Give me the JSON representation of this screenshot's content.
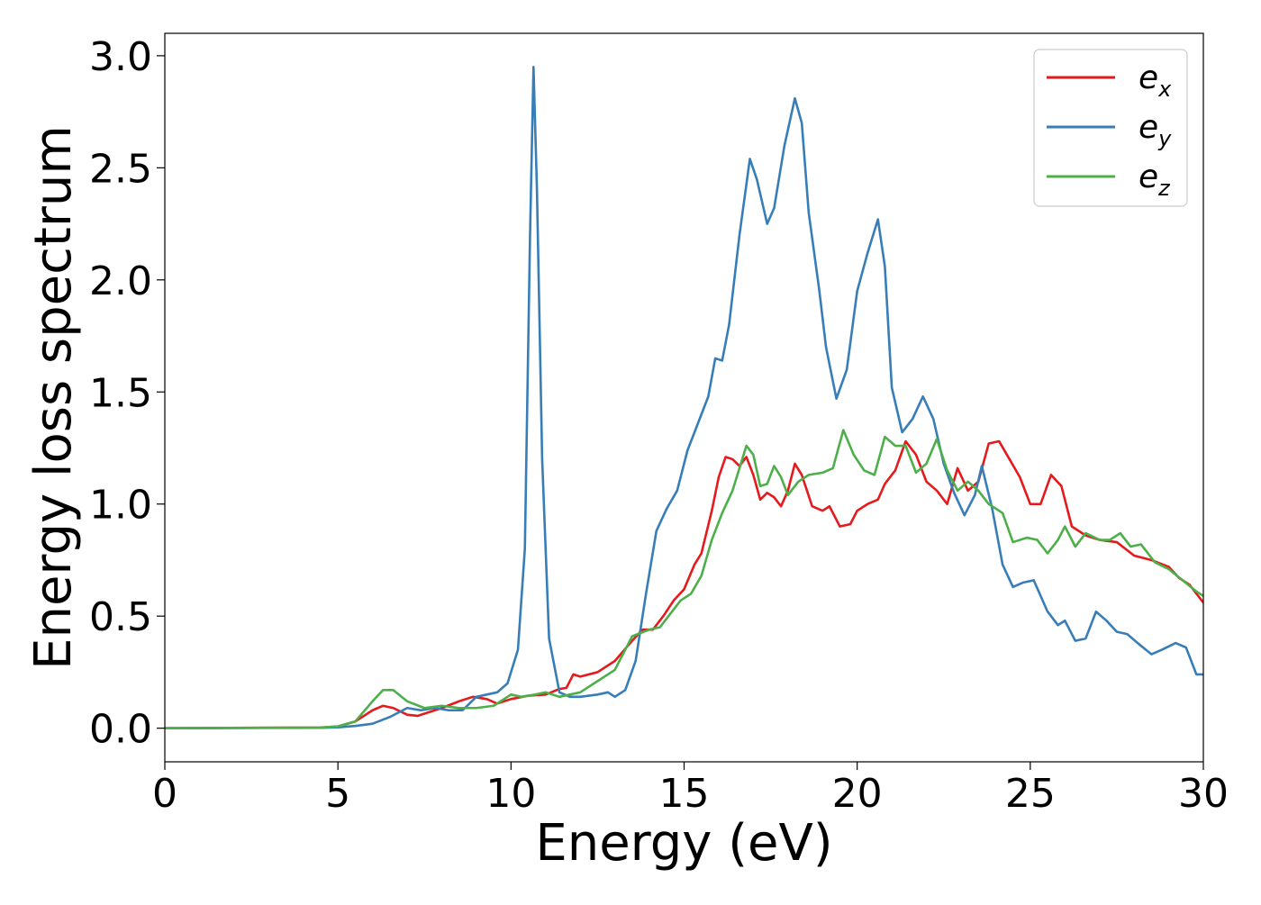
{
  "chart_data": {
    "type": "line",
    "xlabel": "Energy (eV)",
    "ylabel": "Energy loss spectrum",
    "xlim": [
      0,
      30
    ],
    "ylim": [
      -0.15,
      3.1
    ],
    "xticks": [
      0,
      5,
      10,
      15,
      20,
      25,
      30
    ],
    "xtick_labels": [
      "0",
      "5",
      "10",
      "15",
      "20",
      "25",
      "30"
    ],
    "yticks": [
      0.0,
      0.5,
      1.0,
      1.5,
      2.0,
      2.5,
      3.0
    ],
    "ytick_labels": [
      "0.0",
      "0.5",
      "1.0",
      "1.5",
      "2.0",
      "2.5",
      "3.0"
    ],
    "grid": false,
    "legend_position": "top-right",
    "series": [
      {
        "name": "e_x",
        "label_base": "e",
        "label_sub": "x",
        "color": "#e41a1c",
        "points": [
          [
            0,
            0
          ],
          [
            4.5,
            0.003
          ],
          [
            5.0,
            0.008
          ],
          [
            5.5,
            0.03
          ],
          [
            6.0,
            0.08
          ],
          [
            6.3,
            0.1
          ],
          [
            6.6,
            0.09
          ],
          [
            7.0,
            0.06
          ],
          [
            7.3,
            0.055
          ],
          [
            7.6,
            0.07
          ],
          [
            8.0,
            0.09
          ],
          [
            8.5,
            0.12
          ],
          [
            8.9,
            0.14
          ],
          [
            9.3,
            0.13
          ],
          [
            9.6,
            0.11
          ],
          [
            10.0,
            0.13
          ],
          [
            10.5,
            0.145
          ],
          [
            11.0,
            0.15
          ],
          [
            11.4,
            0.175
          ],
          [
            11.6,
            0.18
          ],
          [
            11.8,
            0.24
          ],
          [
            12.0,
            0.23
          ],
          [
            12.5,
            0.25
          ],
          [
            13.0,
            0.3
          ],
          [
            13.5,
            0.39
          ],
          [
            13.8,
            0.44
          ],
          [
            14.1,
            0.44
          ],
          [
            14.4,
            0.5
          ],
          [
            14.7,
            0.57
          ],
          [
            15.0,
            0.62
          ],
          [
            15.3,
            0.73
          ],
          [
            15.5,
            0.78
          ],
          [
            15.8,
            0.97
          ],
          [
            16.0,
            1.12
          ],
          [
            16.2,
            1.21
          ],
          [
            16.4,
            1.2
          ],
          [
            16.6,
            1.17
          ],
          [
            16.8,
            1.21
          ],
          [
            17.0,
            1.13
          ],
          [
            17.2,
            1.02
          ],
          [
            17.4,
            1.05
          ],
          [
            17.6,
            1.03
          ],
          [
            17.8,
            0.99
          ],
          [
            18.0,
            1.06
          ],
          [
            18.2,
            1.18
          ],
          [
            18.4,
            1.13
          ],
          [
            18.7,
            0.99
          ],
          [
            19.0,
            0.97
          ],
          [
            19.2,
            0.99
          ],
          [
            19.5,
            0.9
          ],
          [
            19.8,
            0.91
          ],
          [
            20.0,
            0.97
          ],
          [
            20.3,
            1.0
          ],
          [
            20.6,
            1.02
          ],
          [
            20.8,
            1.09
          ],
          [
            21.1,
            1.15
          ],
          [
            21.4,
            1.28
          ],
          [
            21.7,
            1.22
          ],
          [
            22.0,
            1.1
          ],
          [
            22.3,
            1.06
          ],
          [
            22.6,
            1.0
          ],
          [
            22.9,
            1.16
          ],
          [
            23.2,
            1.06
          ],
          [
            23.5,
            1.1
          ],
          [
            23.8,
            1.27
          ],
          [
            24.1,
            1.28
          ],
          [
            24.4,
            1.2
          ],
          [
            24.7,
            1.12
          ],
          [
            25.0,
            1.0
          ],
          [
            25.3,
            1.0
          ],
          [
            25.6,
            1.13
          ],
          [
            25.9,
            1.08
          ],
          [
            26.2,
            0.9
          ],
          [
            26.6,
            0.86
          ],
          [
            27.0,
            0.84
          ],
          [
            27.5,
            0.83
          ],
          [
            28.0,
            0.77
          ],
          [
            28.5,
            0.75
          ],
          [
            29.0,
            0.72
          ],
          [
            29.3,
            0.67
          ],
          [
            29.6,
            0.64
          ],
          [
            30.0,
            0.56
          ]
        ]
      },
      {
        "name": "e_y",
        "label_base": "e",
        "label_sub": "y",
        "color": "#377eb8",
        "points": [
          [
            0,
            0
          ],
          [
            4.5,
            0.002
          ],
          [
            5.0,
            0.004
          ],
          [
            5.5,
            0.01
          ],
          [
            6.0,
            0.02
          ],
          [
            6.5,
            0.05
          ],
          [
            7.0,
            0.09
          ],
          [
            7.4,
            0.08
          ],
          [
            7.8,
            0.09
          ],
          [
            8.2,
            0.08
          ],
          [
            8.6,
            0.08
          ],
          [
            9.0,
            0.14
          ],
          [
            9.3,
            0.15
          ],
          [
            9.6,
            0.16
          ],
          [
            9.9,
            0.2
          ],
          [
            10.2,
            0.35
          ],
          [
            10.4,
            0.8
          ],
          [
            10.55,
            2.2
          ],
          [
            10.65,
            2.95
          ],
          [
            10.75,
            2.4
          ],
          [
            10.9,
            1.2
          ],
          [
            11.1,
            0.4
          ],
          [
            11.4,
            0.16
          ],
          [
            11.7,
            0.14
          ],
          [
            12.0,
            0.14
          ],
          [
            12.5,
            0.15
          ],
          [
            12.8,
            0.16
          ],
          [
            13.0,
            0.14
          ],
          [
            13.3,
            0.17
          ],
          [
            13.6,
            0.3
          ],
          [
            13.9,
            0.6
          ],
          [
            14.2,
            0.88
          ],
          [
            14.5,
            0.98
          ],
          [
            14.8,
            1.06
          ],
          [
            15.1,
            1.24
          ],
          [
            15.4,
            1.36
          ],
          [
            15.7,
            1.48
          ],
          [
            15.9,
            1.65
          ],
          [
            16.1,
            1.64
          ],
          [
            16.3,
            1.8
          ],
          [
            16.6,
            2.2
          ],
          [
            16.9,
            2.54
          ],
          [
            17.1,
            2.45
          ],
          [
            17.4,
            2.25
          ],
          [
            17.6,
            2.32
          ],
          [
            17.9,
            2.6
          ],
          [
            18.2,
            2.81
          ],
          [
            18.4,
            2.7
          ],
          [
            18.6,
            2.3
          ],
          [
            18.9,
            1.96
          ],
          [
            19.1,
            1.7
          ],
          [
            19.4,
            1.47
          ],
          [
            19.7,
            1.6
          ],
          [
            20.0,
            1.95
          ],
          [
            20.3,
            2.12
          ],
          [
            20.6,
            2.27
          ],
          [
            20.8,
            2.06
          ],
          [
            21.0,
            1.52
          ],
          [
            21.3,
            1.32
          ],
          [
            21.6,
            1.38
          ],
          [
            21.9,
            1.48
          ],
          [
            22.2,
            1.38
          ],
          [
            22.5,
            1.18
          ],
          [
            22.8,
            1.05
          ],
          [
            23.1,
            0.95
          ],
          [
            23.4,
            1.04
          ],
          [
            23.6,
            1.17
          ],
          [
            23.9,
            0.98
          ],
          [
            24.2,
            0.73
          ],
          [
            24.5,
            0.63
          ],
          [
            24.8,
            0.65
          ],
          [
            25.1,
            0.66
          ],
          [
            25.5,
            0.52
          ],
          [
            25.8,
            0.46
          ],
          [
            26.0,
            0.48
          ],
          [
            26.3,
            0.39
          ],
          [
            26.6,
            0.4
          ],
          [
            26.9,
            0.52
          ],
          [
            27.2,
            0.48
          ],
          [
            27.5,
            0.43
          ],
          [
            27.8,
            0.42
          ],
          [
            28.1,
            0.38
          ],
          [
            28.5,
            0.33
          ],
          [
            28.8,
            0.35
          ],
          [
            29.2,
            0.38
          ],
          [
            29.5,
            0.36
          ],
          [
            29.8,
            0.24
          ],
          [
            30.0,
            0.24
          ]
        ]
      },
      {
        "name": "e_z",
        "label_base": "e",
        "label_sub": "z",
        "color": "#4daf4a",
        "points": [
          [
            0,
            0
          ],
          [
            4.5,
            0.003
          ],
          [
            5.0,
            0.008
          ],
          [
            5.5,
            0.03
          ],
          [
            6.0,
            0.12
          ],
          [
            6.3,
            0.17
          ],
          [
            6.6,
            0.17
          ],
          [
            7.0,
            0.12
          ],
          [
            7.5,
            0.09
          ],
          [
            8.0,
            0.1
          ],
          [
            8.5,
            0.09
          ],
          [
            9.0,
            0.09
          ],
          [
            9.5,
            0.1
          ],
          [
            10.0,
            0.15
          ],
          [
            10.3,
            0.14
          ],
          [
            10.7,
            0.15
          ],
          [
            11.0,
            0.16
          ],
          [
            11.4,
            0.14
          ],
          [
            11.7,
            0.15
          ],
          [
            12.0,
            0.16
          ],
          [
            12.5,
            0.21
          ],
          [
            13.0,
            0.26
          ],
          [
            13.5,
            0.41
          ],
          [
            14.0,
            0.44
          ],
          [
            14.3,
            0.45
          ],
          [
            14.6,
            0.51
          ],
          [
            14.9,
            0.57
          ],
          [
            15.2,
            0.6
          ],
          [
            15.5,
            0.68
          ],
          [
            15.8,
            0.84
          ],
          [
            16.1,
            0.96
          ],
          [
            16.4,
            1.06
          ],
          [
            16.8,
            1.26
          ],
          [
            17.0,
            1.22
          ],
          [
            17.2,
            1.08
          ],
          [
            17.4,
            1.09
          ],
          [
            17.6,
            1.17
          ],
          [
            17.8,
            1.12
          ],
          [
            18.0,
            1.04
          ],
          [
            18.3,
            1.1
          ],
          [
            18.6,
            1.13
          ],
          [
            19.0,
            1.14
          ],
          [
            19.3,
            1.16
          ],
          [
            19.6,
            1.33
          ],
          [
            19.9,
            1.22
          ],
          [
            20.2,
            1.15
          ],
          [
            20.5,
            1.13
          ],
          [
            20.8,
            1.3
          ],
          [
            21.1,
            1.26
          ],
          [
            21.4,
            1.26
          ],
          [
            21.7,
            1.14
          ],
          [
            22.0,
            1.18
          ],
          [
            22.3,
            1.29
          ],
          [
            22.6,
            1.15
          ],
          [
            22.9,
            1.06
          ],
          [
            23.2,
            1.1
          ],
          [
            23.5,
            1.06
          ],
          [
            23.8,
            1.0
          ],
          [
            24.2,
            0.96
          ],
          [
            24.5,
            0.83
          ],
          [
            24.9,
            0.85
          ],
          [
            25.2,
            0.84
          ],
          [
            25.5,
            0.78
          ],
          [
            25.8,
            0.84
          ],
          [
            26.0,
            0.9
          ],
          [
            26.3,
            0.81
          ],
          [
            26.6,
            0.87
          ],
          [
            27.0,
            0.84
          ],
          [
            27.3,
            0.84
          ],
          [
            27.6,
            0.87
          ],
          [
            27.9,
            0.81
          ],
          [
            28.2,
            0.82
          ],
          [
            28.6,
            0.74
          ],
          [
            29.0,
            0.71
          ],
          [
            29.4,
            0.66
          ],
          [
            29.8,
            0.61
          ],
          [
            30.0,
            0.59
          ]
        ]
      }
    ]
  }
}
